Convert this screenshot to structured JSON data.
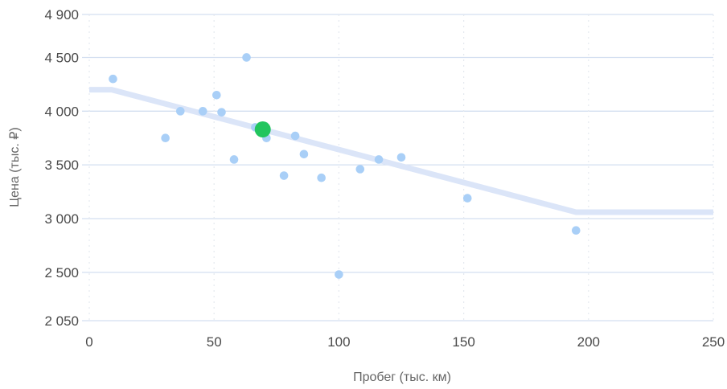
{
  "chart_data": {
    "type": "scatter",
    "xlabel": "Пробег (тыс. км)",
    "ylabel": "Цена (тыс. ₽)",
    "xlim": [
      0,
      250
    ],
    "ylim": [
      2050,
      4900
    ],
    "x_ticks": [
      0,
      50,
      100,
      150,
      200,
      250
    ],
    "x_tick_labels": [
      "0",
      "50",
      "100",
      "150",
      "200",
      "250"
    ],
    "y_ticks": [
      2050,
      2500,
      3000,
      3500,
      4000,
      4500,
      4900
    ],
    "y_tick_labels": [
      "2 050",
      "2 500",
      "3 000",
      "3 500",
      "4 000",
      "4 500",
      "4 900"
    ],
    "grid": true,
    "colors": {
      "points": "#a9cff7",
      "highlight": "#22c55e",
      "trend": "#dbe5f8",
      "grid_h": "#d3dff0",
      "grid_v": "#e4e9ef"
    },
    "series": [
      {
        "points": [
          {
            "x": 9.5,
            "y": 4300
          },
          {
            "x": 30.5,
            "y": 3750
          },
          {
            "x": 36.5,
            "y": 4000
          },
          {
            "x": 45.5,
            "y": 4000
          },
          {
            "x": 51,
            "y": 4150
          },
          {
            "x": 53,
            "y": 3990
          },
          {
            "x": 58,
            "y": 3550
          },
          {
            "x": 63,
            "y": 4500
          },
          {
            "x": 66.5,
            "y": 3850
          },
          {
            "x": 71,
            "y": 3750
          },
          {
            "x": 78,
            "y": 3400
          },
          {
            "x": 82.5,
            "y": 3770
          },
          {
            "x": 86,
            "y": 3600
          },
          {
            "x": 93,
            "y": 3380
          },
          {
            "x": 100,
            "y": 2480
          },
          {
            "x": 108.5,
            "y": 3460
          },
          {
            "x": 116,
            "y": 3550
          },
          {
            "x": 125,
            "y": 3570
          },
          {
            "x": 151.5,
            "y": 3190
          },
          {
            "x": 195,
            "y": 2890
          }
        ]
      },
      {
        "highlight": true,
        "points": [
          {
            "x": 69.5,
            "y": 3830
          }
        ]
      }
    ],
    "trend_line": [
      {
        "x": 0,
        "y": 4200
      },
      {
        "x": 9,
        "y": 4200
      },
      {
        "x": 195,
        "y": 3060
      },
      {
        "x": 250,
        "y": 3060
      }
    ]
  }
}
